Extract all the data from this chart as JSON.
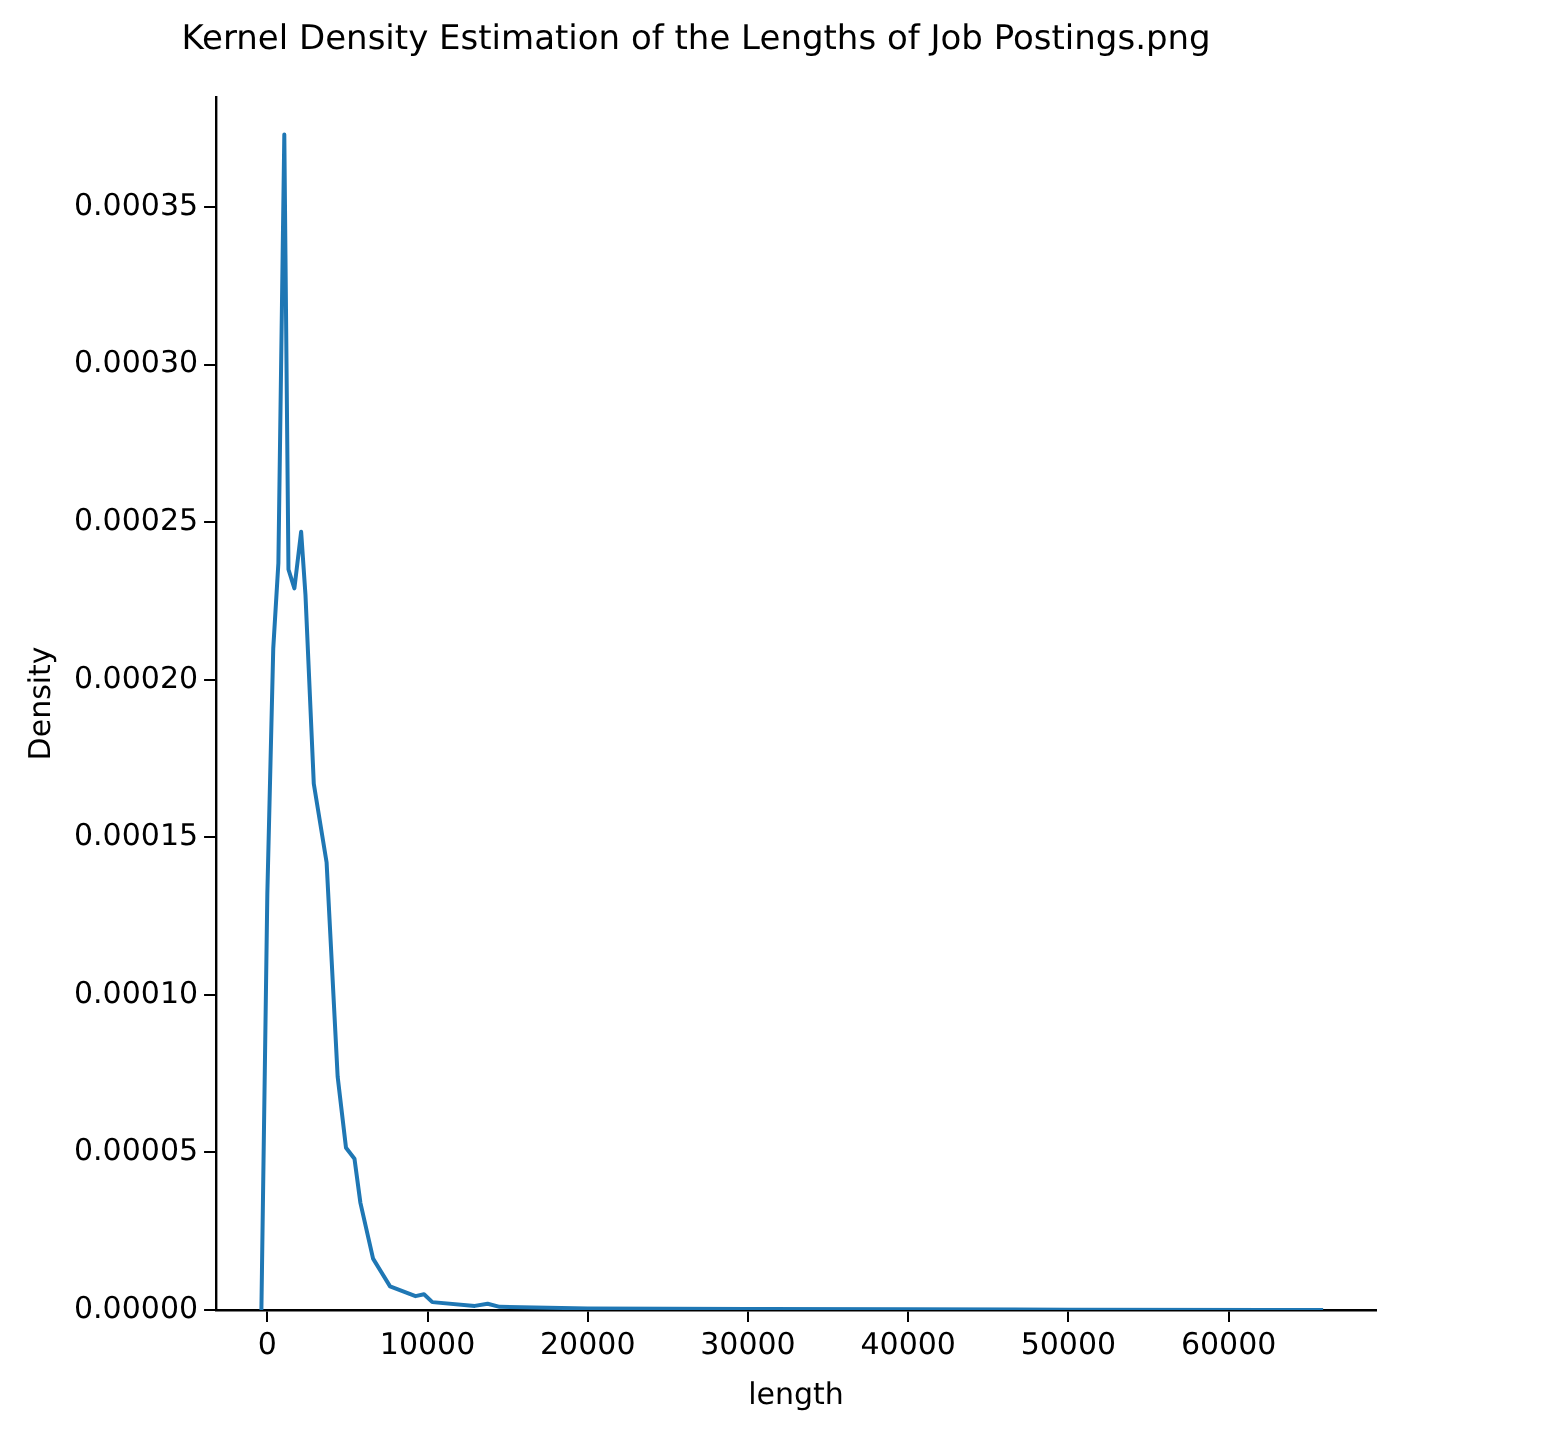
{
  "chart_data": {
    "type": "line",
    "title": "Kernel Density Estimation of the Lengths of Job Postings.png",
    "xlabel": "length",
    "ylabel": "Density",
    "x": [
      -370,
      0,
      370,
      690,
      1060,
      1320,
      1690,
      2110,
      2380,
      2900,
      3700,
      4390,
      4910,
      5440,
      5810,
      6600,
      7660,
      9250,
      9780,
      10300,
      12950,
      13750,
      14500,
      20000,
      30000,
      40000,
      50000,
      65900
    ],
    "series": [
      {
        "color": "#1f77b4",
        "values": [
          0,
          0.000132,
          0.00021,
          0.000237,
          0.000373,
          0.000235,
          0.000229,
          0.000247,
          0.000227,
          0.000167,
          0.000142,
          7.4e-05,
          5.15e-05,
          4.8e-05,
          3.4e-05,
          1.63e-05,
          7.5e-06,
          4.4e-06,
          5e-06,
          2.5e-06,
          1.3e-06,
          2e-06,
          1e-06,
          5e-07,
          3e-07,
          2e-07,
          1e-07,
          0
        ]
      }
    ],
    "xlim": [
      -3200,
      69200
    ],
    "ylim": [
      0,
      0.000385
    ],
    "xticks": [
      0,
      10000,
      20000,
      30000,
      40000,
      50000,
      60000
    ],
    "yticks": [
      {
        "value": 0,
        "label": "0.00000"
      },
      {
        "value": 5e-05,
        "label": "0.00005"
      },
      {
        "value": 0.0001,
        "label": "0.00010"
      },
      {
        "value": 0.00015,
        "label": "0.00015"
      },
      {
        "value": 0.0002,
        "label": "0.00020"
      },
      {
        "value": 0.00025,
        "label": "0.00025"
      },
      {
        "value": 0.0003,
        "label": "0.00030"
      },
      {
        "value": 0.00035,
        "label": "0.00035"
      }
    ],
    "grid": false,
    "legend": false,
    "marker": "none",
    "line_style": "solid"
  }
}
